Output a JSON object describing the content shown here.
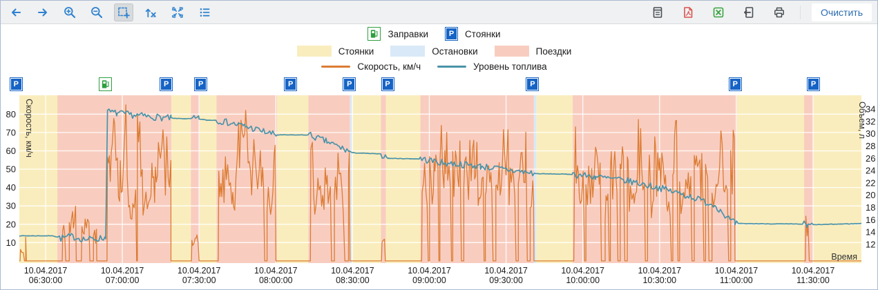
{
  "toolbar": {
    "left_tools": [
      "back",
      "forward",
      "zoom-in",
      "zoom-out",
      "zoom-box-select",
      "reset-x-axis",
      "fit-screen",
      "legend-list"
    ],
    "active_tool": "zoom-box-select",
    "right_tools": [
      "report",
      "export-pdf",
      "export-excel",
      "export-file",
      "print"
    ],
    "clear_label": "Очистить"
  },
  "legend": {
    "markers": [
      {
        "icon": "fuel-station-icon",
        "label": "Заправки"
      },
      {
        "icon": "parking-icon",
        "label": "Стоянки"
      }
    ],
    "bands": [
      {
        "color": "#FAEDBD",
        "label": "Стоянки"
      },
      {
        "color": "#D9E9F7",
        "label": "Остановки"
      },
      {
        "color": "#F8CDC0",
        "label": "Поездки"
      }
    ],
    "lines": [
      {
        "color": "#DC7C33",
        "label": "Скорость, км/ч"
      },
      {
        "color": "#4A93A9",
        "label": "Уровень топлива"
      }
    ]
  },
  "chart_data": {
    "type": "line",
    "title": "",
    "x_axis": {
      "label": "Время",
      "date": "10.04.2017",
      "tick_times": [
        "06:30:00",
        "07:00:00",
        "07:30:00",
        "08:00:00",
        "08:30:00",
        "09:00:00",
        "09:30:00",
        "10:00:00",
        "10:30:00",
        "11:00:00",
        "11:30:00"
      ],
      "tick_minutes": [
        30,
        60,
        90,
        120,
        150,
        180,
        210,
        240,
        270,
        300,
        330
      ],
      "domain_minutes": [
        19.7,
        348.9
      ]
    },
    "y_left": {
      "label": "Скорость, км/ч",
      "ticks": [
        10,
        20,
        30,
        40,
        50,
        60,
        70,
        80
      ],
      "range": [
        0,
        90
      ]
    },
    "y_right": {
      "label": "Объем, л",
      "ticks": [
        12,
        14,
        16,
        18,
        20,
        22,
        24,
        26,
        28,
        30,
        32,
        34
      ],
      "range": [
        11.6,
        36.5
      ]
    },
    "bands": [
      [
        "parking",
        19.7,
        34.6
      ],
      [
        "trip",
        34.6,
        79.2
      ],
      [
        "parking",
        79.2,
        86.8
      ],
      [
        "trip",
        86.8,
        90.3
      ],
      [
        "parking",
        90.3,
        96.8
      ],
      [
        "trip",
        96.8,
        120.5
      ],
      [
        "parking",
        120.5,
        132.7
      ],
      [
        "trip",
        132.7,
        149.0
      ],
      [
        "stop",
        149.0,
        149.7
      ],
      [
        "parking",
        149.7,
        161.1
      ],
      [
        "trip",
        161.1,
        163.0
      ],
      [
        "parking",
        163.0,
        176.5
      ],
      [
        "trip",
        176.5,
        220.9
      ],
      [
        "stop",
        220.9,
        221.9
      ],
      [
        "parking",
        221.9,
        236.0
      ],
      [
        "trip",
        236.0,
        300.3
      ],
      [
        "parking",
        300.3,
        326.5
      ],
      [
        "trip",
        326.5,
        330.0
      ],
      [
        "parking",
        330.0,
        348.9
      ]
    ],
    "markers": [
      {
        "type": "parking",
        "time_min": 18.6
      },
      {
        "type": "fuel",
        "time_min": 53.5
      },
      {
        "type": "parking",
        "time_min": 77.3
      },
      {
        "type": "parking",
        "time_min": 90.8
      },
      {
        "type": "parking",
        "time_min": 125.9
      },
      {
        "type": "parking",
        "time_min": 148.9
      },
      {
        "type": "parking",
        "time_min": 163.8
      },
      {
        "type": "parking",
        "time_min": 220.5
      },
      {
        "type": "parking",
        "time_min": 299.7
      },
      {
        "type": "parking",
        "time_min": 330.3
      }
    ],
    "series": [
      {
        "name": "Скорость, км/ч",
        "axis": "left",
        "color": "#DC7C33",
        "segments": [
          [
            20,
            22.5,
            16,
            0.7
          ],
          [
            36.5,
            42,
            35,
            0.7
          ],
          [
            44,
            50,
            28,
            0.7
          ],
          [
            54,
            79,
            88,
            0.25
          ],
          [
            87,
            90,
            22,
            0.7
          ],
          [
            97.5,
            120,
            88,
            0.45
          ],
          [
            133.5,
            149,
            86,
            0.45
          ],
          [
            161.3,
            162.8,
            18,
            0.7
          ],
          [
            177,
            220.9,
            85,
            0.5
          ],
          [
            236.5,
            299.5,
            88,
            0.5
          ],
          [
            327,
            329.5,
            36,
            0.7
          ]
        ]
      },
      {
        "name": "Уровень топлива",
        "axis": "right",
        "color": "#4A93A9",
        "keyframes": [
          [
            19.7,
            13.4
          ],
          [
            33,
            13.4
          ],
          [
            36,
            13.0
          ],
          [
            40,
            13.3
          ],
          [
            46,
            12.8
          ],
          [
            52,
            13.0
          ],
          [
            53.5,
            13.1
          ],
          [
            54.2,
            33.6
          ],
          [
            58,
            33.3
          ],
          [
            70,
            32.8
          ],
          [
            79,
            32.5
          ],
          [
            90,
            32.4
          ],
          [
            93,
            32.2
          ],
          [
            97,
            32.2
          ],
          [
            108,
            31.2
          ],
          [
            120,
            29.8
          ],
          [
            133,
            29.8
          ],
          [
            140,
            28.7
          ],
          [
            150,
            26.9
          ],
          [
            161,
            26.7
          ],
          [
            164,
            26.0
          ],
          [
            176.5,
            25.9
          ],
          [
            185,
            25.3
          ],
          [
            200,
            24.7
          ],
          [
            222,
            23.5
          ],
          [
            236,
            23.4
          ],
          [
            245,
            23.0
          ],
          [
            258,
            22.3
          ],
          [
            270,
            21.2
          ],
          [
            282,
            19.8
          ],
          [
            292,
            18.3
          ],
          [
            297,
            16.2
          ],
          [
            299.5,
            15.4
          ],
          [
            326.5,
            15.3
          ],
          [
            327.8,
            14.9
          ],
          [
            329.5,
            15.2
          ],
          [
            348.9,
            15.4
          ]
        ]
      }
    ],
    "colors": {
      "parking_band": "#FAEDBD",
      "stop_band": "#D9E9F7",
      "trip_band": "#F8CDC0",
      "speed_line": "#DC7C33",
      "fuel_line": "#4A93A9",
      "grid": "rgba(255,255,255,0.9)",
      "axis_text": "#1b1b1b"
    },
    "legend_position": "top-center",
    "grid": true
  }
}
